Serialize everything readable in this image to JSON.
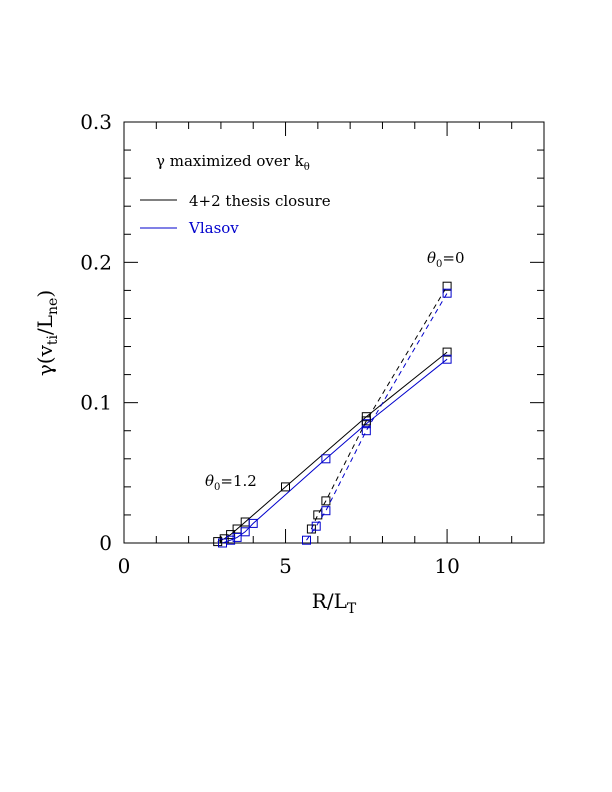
{
  "chart_data": {
    "type": "line",
    "xlabel": "R/L",
    "xlabel_sub": "T",
    "ylabel_pre": "γ(v",
    "ylabel_sub1": "ti",
    "ylabel_mid": "/L",
    "ylabel_sub2": "ne",
    "ylabel_post": ")",
    "xlim": [
      0,
      13
    ],
    "ylim": [
      0,
      0.3
    ],
    "x_ticks": [
      0,
      5,
      10
    ],
    "x_tick_labels": [
      "0",
      "5",
      "10"
    ],
    "y_ticks": [
      0,
      0.1,
      0.2,
      0.3
    ],
    "y_tick_labels": [
      "0",
      "0.1",
      "0.2",
      "0.3"
    ],
    "grid": false,
    "legend": {
      "position": "top-left",
      "title_pre": "γ maximized over k",
      "title_sub": "θ",
      "entries": [
        {
          "label": "4+2 thesis closure",
          "color": "#000000"
        },
        {
          "label": "Vlasov",
          "color": "#0000cc"
        }
      ]
    },
    "annotations": [
      {
        "text_pre": "θ",
        "text_sub": "0",
        "text_post": "=0",
        "x": 10.0,
        "y": 0.2
      },
      {
        "text_pre": "θ",
        "text_sub": "0",
        "text_post": "=1.2",
        "x": 2.5,
        "y": 0.04
      }
    ],
    "series": [
      {
        "name": "4+2 thesis closure",
        "color": "#000000",
        "style": "solid",
        "x": [
          2.9,
          3.1,
          3.3,
          3.5,
          3.75,
          5.0,
          7.5,
          10.0
        ],
        "y": [
          0.001,
          0.003,
          0.006,
          0.01,
          0.015,
          0.04,
          0.09,
          0.136
        ]
      },
      {
        "name": "Vlasov",
        "color": "#0000cc",
        "style": "solid",
        "x": [
          3.05,
          3.3,
          3.5,
          3.75,
          4.0,
          6.25,
          7.5,
          10.0
        ],
        "y": [
          0.0,
          0.002,
          0.004,
          0.008,
          0.014,
          0.06,
          0.085,
          0.131
        ]
      },
      {
        "name": "4+2 thesis closure",
        "color": "#000000",
        "style": "dashed",
        "x": [
          5.8,
          6.0,
          6.25,
          7.5,
          10.0
        ],
        "y": [
          0.01,
          0.02,
          0.03,
          0.087,
          0.183
        ]
      },
      {
        "name": "Vlasov",
        "color": "#0000cc",
        "style": "dashed",
        "x": [
          5.65,
          5.95,
          6.25,
          7.5,
          10.0
        ],
        "y": [
          0.002,
          0.012,
          0.023,
          0.08,
          0.178
        ]
      }
    ]
  }
}
